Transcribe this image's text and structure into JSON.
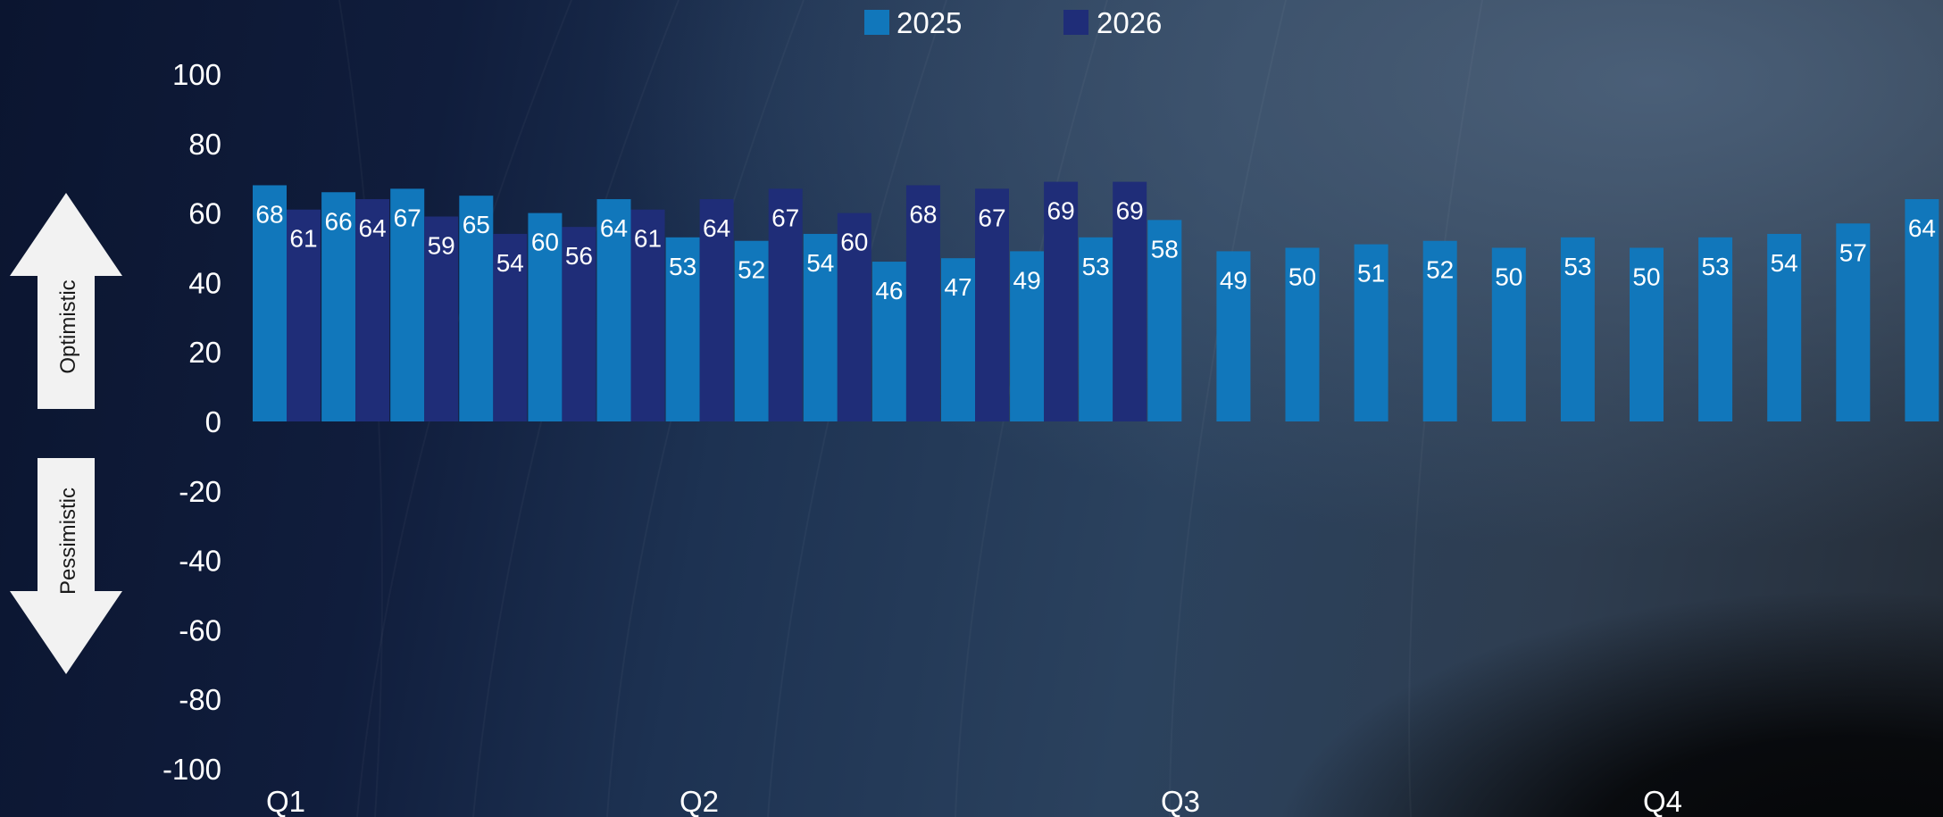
{
  "chart_data": {
    "type": "bar",
    "ylim": [
      -100,
      100
    ],
    "yticks": [
      "100",
      "80",
      "60",
      "40",
      "20",
      "0",
      "-20",
      "-40",
      "-60",
      "-80",
      "-100"
    ],
    "quarter_labels": [
      "Q1",
      "Q2",
      "Q3",
      "Q4"
    ],
    "indicators": {
      "up": "Optimistic",
      "down": "Pessimistic"
    },
    "legend": {
      "position": "top-center"
    },
    "series": [
      {
        "name": "2025",
        "color": "#1177bb",
        "values": [
          68,
          66,
          67,
          65,
          60,
          64,
          53,
          52,
          54,
          46,
          47,
          49,
          53,
          58,
          49,
          50,
          51,
          52,
          50,
          53,
          50,
          53,
          54,
          57,
          64
        ]
      },
      {
        "name": "2026",
        "color": "#1f2d78",
        "values": [
          61,
          64,
          59,
          54,
          56,
          61,
          64,
          67,
          60,
          68,
          67,
          69,
          69
        ]
      }
    ]
  }
}
